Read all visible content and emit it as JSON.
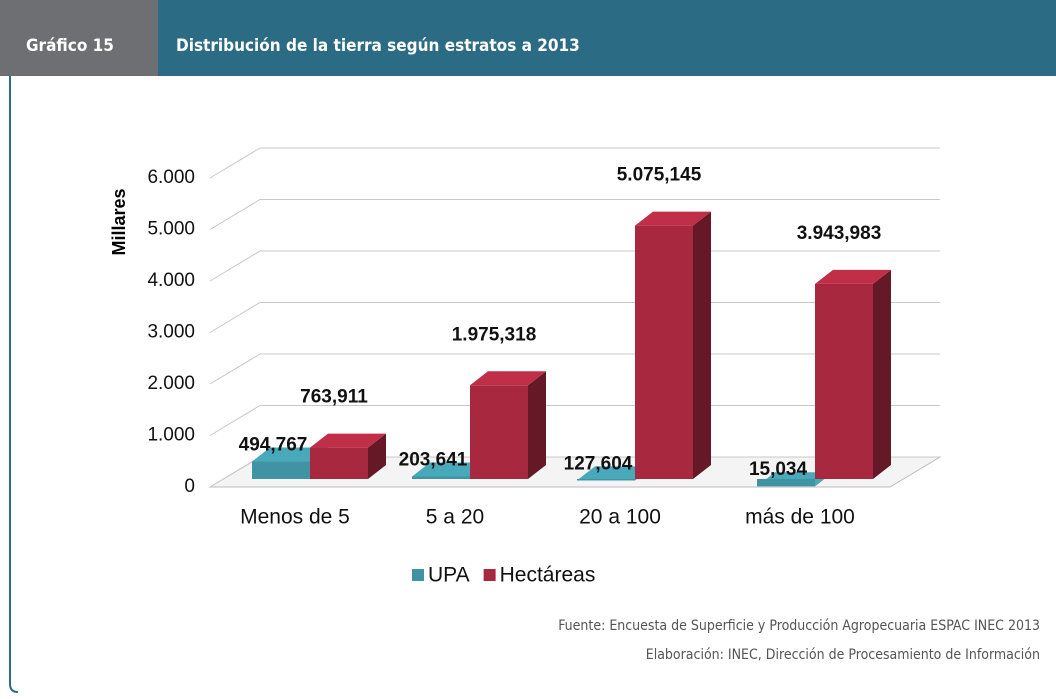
{
  "chart_data": {
    "type": "bar",
    "chart_number": "Gráfico 15",
    "title": "Distribución de la tierra según estratos a 2013",
    "y_label": "Millares",
    "categories": [
      "Menos de 5",
      "5 a 20",
      "20 a 100",
      "más de 100"
    ],
    "series": [
      {
        "name": "UPA",
        "color": "#3f93a3",
        "values": [
          494.767,
          203.641,
          127.604,
          15.034
        ],
        "value_labels": [
          "494,767",
          "203,641",
          "127,604",
          "15,034"
        ]
      },
      {
        "name": "Hectáreas",
        "color": "#a8283f",
        "values": [
          763.911,
          1975.318,
          5075.145,
          3943.983
        ],
        "value_labels": [
          "763,911",
          "1.975,318",
          "5.075,145",
          "3.943,983"
        ]
      }
    ],
    "ylim": [
      0,
      6000
    ],
    "yticks": [
      0,
      {
        "value": 1000,
        "label": "1.000"
      },
      {
        "value": 2000,
        "label": "2.000"
      },
      {
        "value": 3000,
        "label": "3.000"
      },
      {
        "value": 4000,
        "label": "4.000"
      },
      {
        "value": 5000,
        "label": "5.000"
      },
      {
        "value": 6000,
        "label": "6.000"
      }
    ],
    "grid": true,
    "source": [
      "Fuente: Encuesta de Superficie y Producción Agropecuaria ESPAC INEC 2013",
      "Elaboración: INEC, Dirección de Procesamiento de Información"
    ]
  }
}
